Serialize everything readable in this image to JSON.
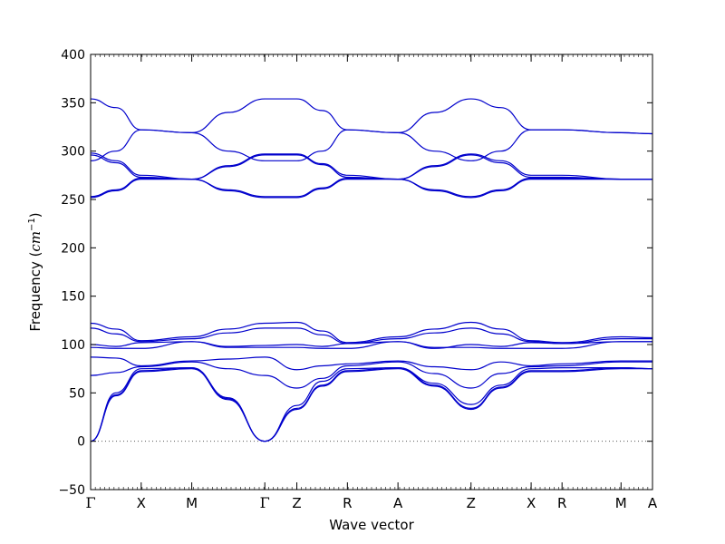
{
  "chart_data": {
    "type": "line",
    "title": "",
    "xlabel": "Wave vector",
    "ylabel": "Frequency",
    "ylabel_unit_base": "cm",
    "ylabel_unit_exponent": "−1",
    "ylim": [
      -50,
      400
    ],
    "yticks": [
      -50,
      0,
      50,
      100,
      150,
      200,
      250,
      300,
      350,
      400
    ],
    "xlim": [
      0,
      1
    ],
    "kpath": [
      {
        "label": "Γ",
        "x": 0.0
      },
      {
        "label": "X",
        "x": 0.09
      },
      {
        "label": "M",
        "x": 0.18
      },
      {
        "label": "Γ",
        "x": 0.31
      },
      {
        "label": "Z",
        "x": 0.367
      },
      {
        "label": "R",
        "x": 0.457
      },
      {
        "label": "A",
        "x": 0.547
      },
      {
        "label": "Z",
        "x": 0.677
      },
      {
        "label": "X",
        "x": 0.784
      },
      {
        "label": "R",
        "x": 0.839
      },
      {
        "label": "M",
        "x": 0.944
      },
      {
        "label": "A",
        "x": 1.0
      }
    ],
    "zero_line": true,
    "line_color": "#0000cc",
    "series": [
      {
        "x": [
          0,
          0.045,
          0.09,
          0.18,
          0.245,
          0.31,
          0.367,
          0.412,
          0.457,
          0.547,
          0.612,
          0.677,
          0.73,
          0.784,
          0.839,
          0.944,
          1.0
        ],
        "values": [
          354,
          345,
          322,
          319,
          340,
          354,
          354,
          342,
          322,
          319,
          340,
          354,
          345,
          322,
          322,
          319,
          318
        ]
      },
      {
        "x": [
          0,
          0.045,
          0.09,
          0.18,
          0.245,
          0.31,
          0.367,
          0.412,
          0.457,
          0.547,
          0.612,
          0.677,
          0.73,
          0.784,
          0.839,
          0.944,
          1.0
        ],
        "values": [
          290,
          300,
          322,
          319,
          300,
          290,
          290,
          300,
          322,
          319,
          300,
          290,
          300,
          322,
          322,
          319,
          318
        ]
      },
      {
        "x": [
          0,
          0.045,
          0.09,
          0.18,
          0.245,
          0.31,
          0.367,
          0.412,
          0.457,
          0.547,
          0.612,
          0.677,
          0.73,
          0.784,
          0.839,
          0.944,
          1.0
        ],
        "values": [
          298,
          290,
          275,
          271,
          285,
          297,
          297,
          287,
          275,
          271,
          285,
          297,
          290,
          275,
          275,
          271,
          271
        ]
      },
      {
        "x": [
          0,
          0.045,
          0.09,
          0.18,
          0.245,
          0.31,
          0.367,
          0.412,
          0.457,
          0.547,
          0.612,
          0.677,
          0.73,
          0.784,
          0.839,
          0.944,
          1.0
        ],
        "values": [
          296,
          288,
          273,
          271,
          284,
          296,
          296,
          286,
          273,
          271,
          284,
          296,
          288,
          273,
          273,
          271,
          271
        ]
      },
      {
        "x": [
          0,
          0.045,
          0.09,
          0.18,
          0.245,
          0.31,
          0.367,
          0.412,
          0.457,
          0.547,
          0.612,
          0.677,
          0.73,
          0.784,
          0.839,
          0.944,
          1.0
        ],
        "values": [
          253,
          260,
          272,
          271,
          260,
          253,
          253,
          262,
          272,
          271,
          260,
          253,
          260,
          272,
          272,
          271,
          271
        ]
      },
      {
        "x": [
          0,
          0.045,
          0.09,
          0.18,
          0.245,
          0.31,
          0.367,
          0.412,
          0.457,
          0.547,
          0.612,
          0.677,
          0.73,
          0.784,
          0.839,
          0.944,
          1.0
        ],
        "values": [
          252,
          259,
          271,
          271,
          259,
          252,
          252,
          261,
          271,
          271,
          259,
          252,
          259,
          271,
          271,
          271,
          271
        ]
      },
      {
        "x": [
          0,
          0.045,
          0.09,
          0.18,
          0.245,
          0.31,
          0.367,
          0.412,
          0.457,
          0.547,
          0.612,
          0.677,
          0.73,
          0.784,
          0.839,
          0.944,
          1.0
        ],
        "values": [
          122,
          116,
          104,
          108,
          116,
          122,
          123,
          114,
          102,
          108,
          116,
          123,
          116,
          104,
          102,
          108,
          107
        ]
      },
      {
        "x": [
          0,
          0.045,
          0.09,
          0.18,
          0.245,
          0.31,
          0.367,
          0.412,
          0.457,
          0.547,
          0.612,
          0.677,
          0.73,
          0.784,
          0.839,
          0.944,
          1.0
        ],
        "values": [
          117,
          111,
          103,
          106,
          112,
          117,
          117,
          110,
          101,
          106,
          112,
          117,
          111,
          103,
          101,
          106,
          106
        ]
      },
      {
        "x": [
          0,
          0.045,
          0.09,
          0.18,
          0.245,
          0.31,
          0.367,
          0.412,
          0.457,
          0.547,
          0.612,
          0.677,
          0.73,
          0.784,
          0.839,
          0.944,
          1.0
        ],
        "values": [
          100,
          98,
          102,
          103,
          98,
          99,
          100,
          98,
          101,
          103,
          96,
          100,
          98,
          102,
          101,
          103,
          103
        ]
      },
      {
        "x": [
          0,
          0.045,
          0.09,
          0.18,
          0.245,
          0.31,
          0.367,
          0.412,
          0.457,
          0.547,
          0.612,
          0.677,
          0.73,
          0.784,
          0.839,
          0.944,
          1.0
        ],
        "values": [
          97,
          96,
          96,
          103,
          97,
          97,
          97,
          96,
          96,
          103,
          97,
          97,
          96,
          96,
          96,
          103,
          103
        ]
      },
      {
        "x": [
          0,
          0.045,
          0.09,
          0.18,
          0.245,
          0.31,
          0.367,
          0.412,
          0.457,
          0.547,
          0.612,
          0.677,
          0.73,
          0.784,
          0.839,
          0.944,
          1.0
        ],
        "values": [
          87,
          86,
          78,
          83,
          85,
          87,
          74,
          78,
          80,
          83,
          77,
          74,
          82,
          78,
          80,
          83,
          83
        ]
      },
      {
        "x": [
          0,
          0.045,
          0.09,
          0.18,
          0.245,
          0.31,
          0.367,
          0.412,
          0.457,
          0.547,
          0.612,
          0.677,
          0.73,
          0.784,
          0.839,
          0.944,
          1.0
        ],
        "values": [
          68,
          71,
          77,
          82,
          75,
          68,
          55,
          65,
          78,
          82,
          70,
          55,
          70,
          77,
          78,
          82,
          82
        ]
      },
      {
        "x": [
          0,
          0.045,
          0.09,
          0.18,
          0.245,
          0.31,
          0.367,
          0.412,
          0.457,
          0.547,
          0.612,
          0.677,
          0.73,
          0.784,
          0.839,
          0.944,
          1.0
        ],
        "values": [
          0,
          50,
          75,
          76,
          45,
          0,
          37,
          62,
          75,
          76,
          60,
          38,
          58,
          75,
          76,
          76,
          75
        ]
      },
      {
        "x": [
          0,
          0.045,
          0.09,
          0.18,
          0.245,
          0.31,
          0.367,
          0.412,
          0.457,
          0.547,
          0.612,
          0.677,
          0.73,
          0.784,
          0.839,
          0.944,
          1.0
        ],
        "values": [
          0,
          48,
          73,
          76,
          44,
          0,
          34,
          58,
          73,
          76,
          58,
          34,
          56,
          73,
          73,
          76,
          75
        ]
      },
      {
        "x": [
          0,
          0.045,
          0.09,
          0.18,
          0.245,
          0.31,
          0.367,
          0.412,
          0.457,
          0.547,
          0.612,
          0.677,
          0.73,
          0.784,
          0.839,
          0.944,
          1.0
        ],
        "values": [
          0,
          47,
          72,
          75,
          43,
          0,
          33,
          57,
          72,
          75,
          57,
          33,
          55,
          72,
          72,
          75,
          75
        ]
      }
    ]
  }
}
